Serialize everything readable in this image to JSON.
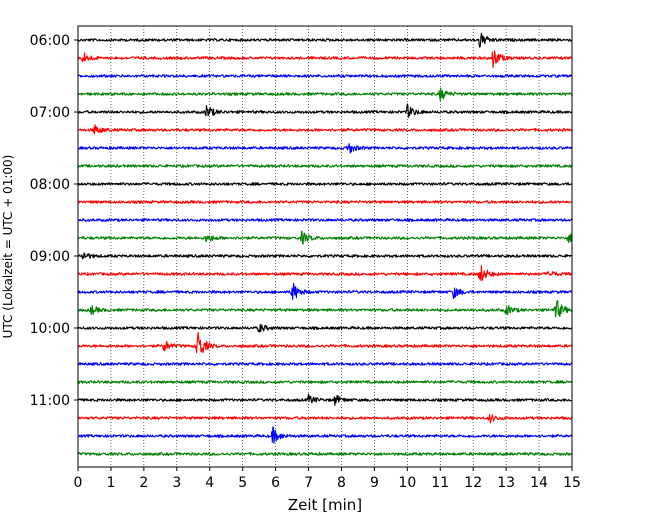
{
  "chart_data": {
    "type": "line",
    "subtype": "helicorder-seismogram",
    "title": "",
    "xlabel": "Zeit  [min]",
    "ylabel": "UTC (Lokalzeit = UTC + 01:00)",
    "xlim": [
      0,
      15
    ],
    "x_ticks": [
      "0",
      "1",
      "2",
      "3",
      "4",
      "5",
      "6",
      "7",
      "8",
      "9",
      "10",
      "11",
      "12",
      "13",
      "14",
      "15"
    ],
    "y_ticks": [
      "06:00",
      "07:00",
      "08:00",
      "09:00",
      "10:00",
      "11:00"
    ],
    "trace_interval_min": 15,
    "grid": "vertical dotted at each minute",
    "trace_colors": [
      "#000000",
      "#ff0000",
      "#0000ff",
      "#008000"
    ],
    "traces": [
      {
        "start": "06:00",
        "color": "#000000",
        "events": [
          {
            "t": 12.2,
            "amp": 1.6
          }
        ]
      },
      {
        "start": "06:15",
        "color": "#ff0000",
        "events": [
          {
            "t": 0.15,
            "amp": 1.2
          },
          {
            "t": 12.6,
            "amp": 2.0
          }
        ]
      },
      {
        "start": "06:30",
        "color": "#0000ff",
        "events": []
      },
      {
        "start": "06:45",
        "color": "#008000",
        "events": [
          {
            "t": 11.0,
            "amp": 1.3
          }
        ]
      },
      {
        "start": "07:00",
        "color": "#000000",
        "events": [
          {
            "t": 3.9,
            "amp": 1.4
          },
          {
            "t": 10.0,
            "amp": 1.4
          }
        ]
      },
      {
        "start": "07:15",
        "color": "#ff0000",
        "events": [
          {
            "t": 0.5,
            "amp": 1.0
          }
        ]
      },
      {
        "start": "07:30",
        "color": "#0000ff",
        "events": [
          {
            "t": 8.2,
            "amp": 1.2
          }
        ]
      },
      {
        "start": "07:45",
        "color": "#008000",
        "events": []
      },
      {
        "start": "08:00",
        "color": "#000000",
        "events": []
      },
      {
        "start": "08:15",
        "color": "#ff0000",
        "events": []
      },
      {
        "start": "08:30",
        "color": "#0000ff",
        "events": []
      },
      {
        "start": "08:45",
        "color": "#008000",
        "events": [
          {
            "t": 3.9,
            "amp": 0.9
          },
          {
            "t": 6.8,
            "amp": 1.3
          },
          {
            "t": 14.9,
            "amp": 0.9
          }
        ]
      },
      {
        "start": "09:00",
        "color": "#000000",
        "events": [
          {
            "t": 0.15,
            "amp": 0.9
          }
        ]
      },
      {
        "start": "09:15",
        "color": "#ff0000",
        "events": [
          {
            "t": 12.2,
            "amp": 2.1
          },
          {
            "t": 14.3,
            "amp": 0.7
          }
        ]
      },
      {
        "start": "09:30",
        "color": "#0000ff",
        "events": [
          {
            "t": 6.5,
            "amp": 2.2
          },
          {
            "t": 11.4,
            "amp": 1.2
          }
        ]
      },
      {
        "start": "09:45",
        "color": "#008000",
        "events": [
          {
            "t": 0.4,
            "amp": 0.9
          },
          {
            "t": 13.0,
            "amp": 1.1
          },
          {
            "t": 14.5,
            "amp": 2.4
          }
        ]
      },
      {
        "start": "10:00",
        "color": "#000000",
        "events": [
          {
            "t": 5.5,
            "amp": 0.9
          }
        ]
      },
      {
        "start": "10:15",
        "color": "#ff0000",
        "events": [
          {
            "t": 2.6,
            "amp": 1.2
          },
          {
            "t": 3.6,
            "amp": 4.0
          }
        ]
      },
      {
        "start": "10:30",
        "color": "#0000ff",
        "events": []
      },
      {
        "start": "10:45",
        "color": "#008000",
        "events": []
      },
      {
        "start": "11:00",
        "color": "#000000",
        "events": [
          {
            "t": 7.0,
            "amp": 0.9
          },
          {
            "t": 7.8,
            "amp": 1.0
          }
        ]
      },
      {
        "start": "11:15",
        "color": "#ff0000",
        "events": [
          {
            "t": 12.5,
            "amp": 0.8
          }
        ]
      },
      {
        "start": "11:30",
        "color": "#0000ff",
        "events": [
          {
            "t": 5.9,
            "amp": 1.8
          }
        ]
      },
      {
        "start": "11:45",
        "color": "#008000",
        "events": []
      }
    ]
  }
}
